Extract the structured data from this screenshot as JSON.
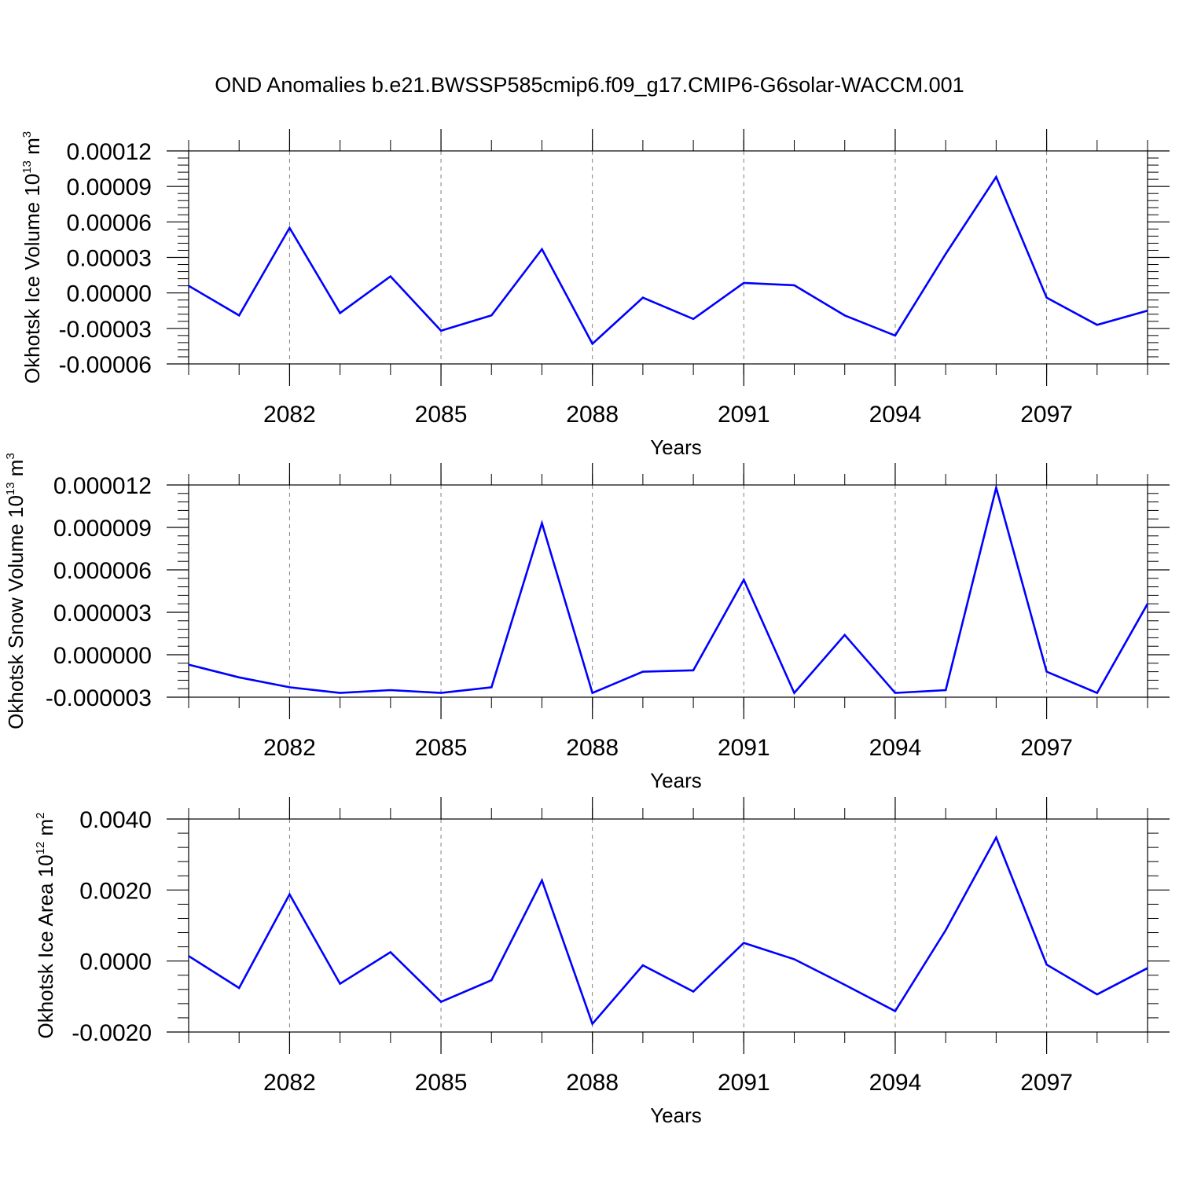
{
  "title": "OND Anomalies b.e21.BWSSP585cmip6.f09_g17.CMIP6-G6solar-WACCM.001",
  "colors": {
    "line": "#0000ff",
    "axis": "#000000",
    "grid": "#808080"
  },
  "chart_data": [
    {
      "type": "line",
      "ylabel": {
        "text": "Okhotsk Ice Volume 10",
        "exp": "13",
        "unit": " m",
        "unit_exp": "3"
      },
      "xlabel": "Years",
      "xlim": [
        2080,
        2099
      ],
      "xticks": [
        "2082",
        "2085",
        "2088",
        "2091",
        "2094",
        "2097"
      ],
      "ylim": [
        -6e-05,
        0.00012
      ],
      "yticks": [
        "0.00012",
        "0.00009",
        "0.00006",
        "0.00003",
        "0.00000",
        "-0.00003",
        "-0.00006"
      ],
      "grid": "vertical dashed at major x ticks",
      "x": [
        2080,
        2081,
        2082,
        2083,
        2084,
        2085,
        2086,
        2087,
        2088,
        2089,
        2090,
        2091,
        2092,
        2093,
        2094,
        2095,
        2096,
        2097,
        2098,
        2099
      ],
      "values": [
        6e-06,
        -1.9e-05,
        5.5e-05,
        -1.7e-05,
        1.4e-05,
        -3.2e-05,
        -1.9e-05,
        3.7e-05,
        -4.3e-05,
        -4e-06,
        -2.2e-05,
        8.5e-06,
        6.5e-06,
        -1.9e-05,
        -3.6e-05,
        3.3e-05,
        9.8e-05,
        -4e-06,
        -2.7e-05,
        -1.5e-05
      ]
    },
    {
      "type": "line",
      "ylabel": {
        "text": "Okhotsk Snow Volume 10",
        "exp": "13",
        "unit": " m",
        "unit_exp": "3"
      },
      "xlabel": "Years",
      "xlim": [
        2080,
        2099
      ],
      "xticks": [
        "2082",
        "2085",
        "2088",
        "2091",
        "2094",
        "2097"
      ],
      "ylim": [
        -3e-06,
        1.2e-05
      ],
      "yticks": [
        "0.000012",
        "0.000009",
        "0.000006",
        "0.000003",
        "0.000000",
        "-0.000003"
      ],
      "grid": "vertical dashed at major x ticks",
      "x": [
        2080,
        2081,
        2082,
        2083,
        2084,
        2085,
        2086,
        2087,
        2088,
        2089,
        2090,
        2091,
        2092,
        2093,
        2094,
        2095,
        2096,
        2097,
        2098,
        2099
      ],
      "values": [
        -7e-07,
        -1.6e-06,
        -2.3e-06,
        -2.7e-06,
        -2.5e-06,
        -2.7e-06,
        -2.3e-06,
        9.3e-06,
        -2.7e-06,
        -1.2e-06,
        -1.1e-06,
        5.3e-06,
        -2.7e-06,
        1.4e-06,
        -2.7e-06,
        -2.5e-06,
        1.18e-05,
        -1.2e-06,
        -2.7e-06,
        3.6e-06
      ]
    },
    {
      "type": "line",
      "ylabel": {
        "text": "Okhotsk Ice Area 10",
        "exp": "12",
        "unit": " m",
        "unit_exp": "2"
      },
      "xlabel": "Years",
      "xlim": [
        2080,
        2099
      ],
      "xticks": [
        "2082",
        "2085",
        "2088",
        "2091",
        "2094",
        "2097"
      ],
      "ylim": [
        -0.002,
        0.004
      ],
      "yticks": [
        "0.0040",
        "0.0020",
        "0.0000",
        "-0.0020"
      ],
      "grid": "vertical dashed at major x ticks",
      "x": [
        2080,
        2081,
        2082,
        2083,
        2084,
        2085,
        2086,
        2087,
        2088,
        2089,
        2090,
        2091,
        2092,
        2093,
        2094,
        2095,
        2096,
        2097,
        2098,
        2099
      ],
      "values": [
        0.00014,
        -0.00076,
        0.00188,
        -0.00064,
        0.00025,
        -0.00115,
        -0.00054,
        0.00227,
        -0.00177,
        -0.00012,
        -0.00086,
        0.00051,
        5e-05,
        -0.00067,
        -0.00141,
        0.00087,
        0.00348,
        -0.0001,
        -0.00094,
        -0.0002
      ]
    }
  ]
}
